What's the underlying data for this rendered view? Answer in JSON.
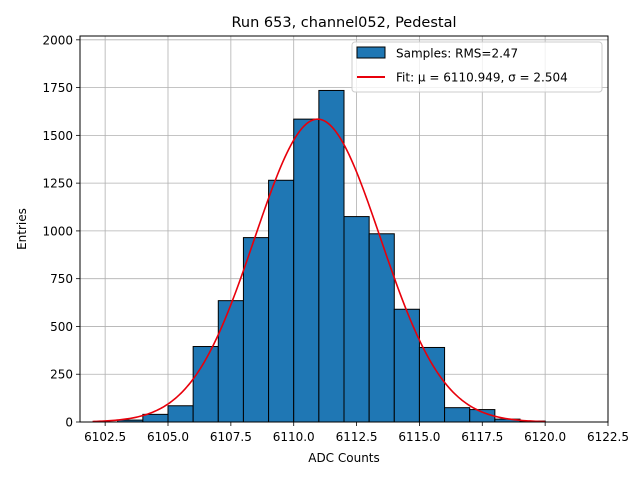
{
  "chart_data": {
    "type": "bar",
    "title": "Run 653, channel052, Pedestal",
    "xlabel": "ADC Counts",
    "ylabel": "Entries",
    "xlim": [
      6101.5,
      6122.5
    ],
    "ylim": [
      0,
      2020
    ],
    "grid": true,
    "legend_position": "top-right",
    "xticks": [
      6102.5,
      6105.0,
      6107.5,
      6110.0,
      6112.5,
      6115.0,
      6117.5,
      6120.0,
      6122.5
    ],
    "xtick_labels": [
      "6102.5",
      "6105.0",
      "6107.5",
      "6110.0",
      "6112.5",
      "6115.0",
      "6117.5",
      "6120.0",
      "6122.5"
    ],
    "yticks": [
      0,
      250,
      500,
      750,
      1000,
      1250,
      1500,
      1750,
      2000
    ],
    "ytick_labels": [
      "0",
      "250",
      "500",
      "750",
      "1000",
      "1250",
      "1500",
      "1750",
      "2000"
    ],
    "histogram": {
      "name": "Samples: RMS=2.47",
      "color": "#1f77b4",
      "edge_color": "#000000",
      "bins": [
        {
          "start": 6103,
          "end": 6104,
          "value": 10
        },
        {
          "start": 6104,
          "end": 6105,
          "value": 40
        },
        {
          "start": 6105,
          "end": 6106,
          "value": 85
        },
        {
          "start": 6106,
          "end": 6107,
          "value": 395
        },
        {
          "start": 6107,
          "end": 6108,
          "value": 635
        },
        {
          "start": 6108,
          "end": 6109,
          "value": 965
        },
        {
          "start": 6109,
          "end": 6110,
          "value": 1265
        },
        {
          "start": 6110,
          "end": 6111,
          "value": 1585
        },
        {
          "start": 6111,
          "end": 6112,
          "value": 1735
        },
        {
          "start": 6112,
          "end": 6113,
          "value": 1075
        },
        {
          "start": 6113,
          "end": 6114,
          "value": 985
        },
        {
          "start": 6114,
          "end": 6115,
          "value": 590
        },
        {
          "start": 6115,
          "end": 6116,
          "value": 390
        },
        {
          "start": 6116,
          "end": 6117,
          "value": 75
        },
        {
          "start": 6117,
          "end": 6118,
          "value": 65
        },
        {
          "start": 6118,
          "end": 6119,
          "value": 15
        },
        {
          "start": 6119,
          "end": 6120,
          "value": 5
        }
      ]
    },
    "fit": {
      "name": "Fit: μ = 6110.949, σ = 2.504",
      "color": "#e8000b",
      "mu": 6110.949,
      "sigma": 2.504,
      "peak": 1585,
      "range": [
        6102,
        6120
      ]
    }
  }
}
